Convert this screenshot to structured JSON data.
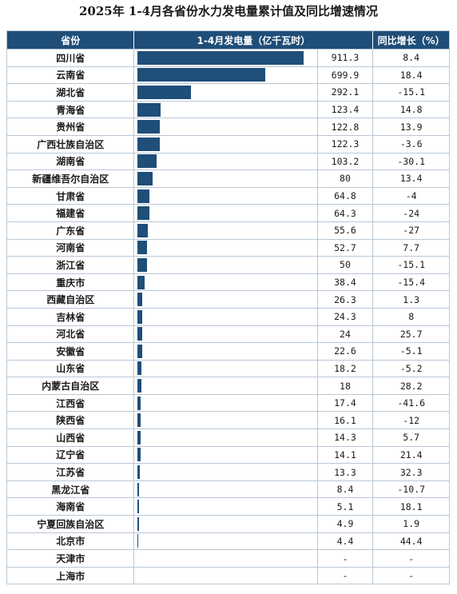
{
  "title": "2025年 1-4月各省份水力发电量累计值及同比增速情况",
  "colors": {
    "header_bg": "#1f4e79",
    "bar": "#1f4e79",
    "border": "#b9c7d6"
  },
  "headers": {
    "province": "省份",
    "value": "1-4月发电量（亿千瓦时）",
    "growth": "同比增长（%）"
  },
  "chart_data": {
    "type": "bar",
    "orientation": "horizontal",
    "title": "2025年 1-4月各省份水力发电量累计值及同比增速情况",
    "categories": [
      "四川省",
      "云南省",
      "湖北省",
      "青海省",
      "贵州省",
      "广西壮族自治区",
      "湖南省",
      "新疆维吾尔自治区",
      "甘肃省",
      "福建省",
      "广东省",
      "河南省",
      "浙江省",
      "重庆市",
      "西藏自治区",
      "吉林省",
      "河北省",
      "安徽省",
      "山东省",
      "内蒙古自治区",
      "江西省",
      "陕西省",
      "山西省",
      "辽宁省",
      "江苏省",
      "黑龙江省",
      "海南省",
      "宁夏回族自治区",
      "北京市",
      "天津市",
      "上海市"
    ],
    "series": [
      {
        "name": "1-4月发电量（亿千瓦时）",
        "values": [
          911.3,
          699.9,
          292.1,
          123.4,
          122.8,
          122.3,
          103.2,
          80,
          64.8,
          64.3,
          55.6,
          52.7,
          50,
          38.4,
          26.3,
          24.3,
          24,
          22.6,
          18.2,
          18,
          17.4,
          16.1,
          14.3,
          14.1,
          13.3,
          8.4,
          5.1,
          4.9,
          4.4,
          null,
          null
        ],
        "labels": [
          "911.3",
          "699.9",
          "292.1",
          "123.4",
          "122.8",
          "122.3",
          "103.2",
          "80",
          "64.8",
          "64.3",
          "55.6",
          "52.7",
          "50",
          "38.4",
          "26.3",
          "24.3",
          "24",
          "22.6",
          "18.2",
          "18",
          "17.4",
          "16.1",
          "14.3",
          "14.1",
          "13.3",
          "8.4",
          "5.1",
          "4.9",
          "4.4",
          "-",
          "-"
        ]
      },
      {
        "name": "同比增长（%）",
        "values": [
          8.4,
          18.4,
          -15.1,
          14.8,
          13.9,
          -3.6,
          -30.1,
          13.4,
          -4,
          -24,
          -27,
          7.7,
          -15.1,
          -15.4,
          1.3,
          8,
          25.7,
          -5.1,
          -5.2,
          28.2,
          -41.6,
          -12,
          5.7,
          21.4,
          32.3,
          -10.7,
          18.1,
          1.9,
          44.4,
          null,
          null
        ],
        "labels": [
          "8.4",
          "18.4",
          "-15.1",
          "14.8",
          "13.9",
          "-3.6",
          "-30.1",
          "13.4",
          "-4",
          "-24",
          "-27",
          "7.7",
          "-15.1",
          "-15.4",
          "1.3",
          "8",
          "25.7",
          "-5.1",
          "-5.2",
          "28.2",
          "-41.6",
          "-12",
          "5.7",
          "21.4",
          "32.3",
          "-10.7",
          "18.1",
          "1.9",
          "44.4",
          "-",
          "-"
        ]
      }
    ],
    "xlim": [
      0,
      911.3
    ]
  }
}
